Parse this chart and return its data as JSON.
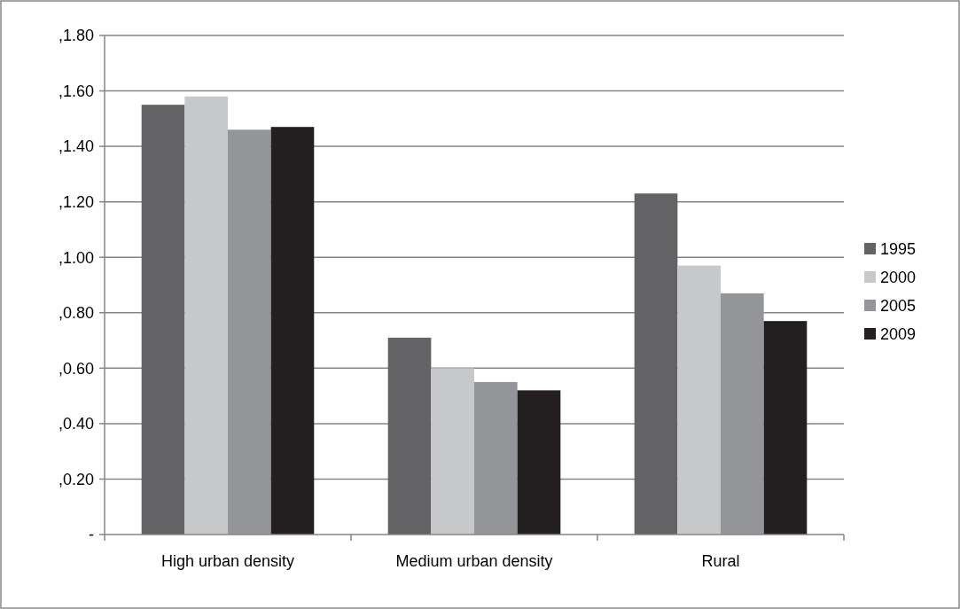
{
  "chart_data": {
    "type": "bar",
    "categories": [
      "High urban density",
      "Medium urban density",
      "Rural"
    ],
    "series": [
      {
        "name": "1995",
        "color": "#636365",
        "values": [
          1.55,
          0.71,
          1.23
        ]
      },
      {
        "name": "2000",
        "color": "#c7c8ca",
        "values": [
          1.58,
          0.6,
          0.97
        ]
      },
      {
        "name": "2005",
        "color": "#939598",
        "values": [
          1.46,
          0.55,
          0.87
        ]
      },
      {
        "name": "2009",
        "color": "#231f20",
        "values": [
          1.47,
          0.52,
          0.77
        ]
      }
    ],
    "ylim": [
      0,
      1.8
    ],
    "yticks": [
      {
        "value": 0,
        "label": "-"
      },
      {
        "value": 0.2,
        "label": ",0.20"
      },
      {
        "value": 0.4,
        "label": ",0.40"
      },
      {
        "value": 0.6,
        "label": ",0.60"
      },
      {
        "value": 0.8,
        "label": ",0.80"
      },
      {
        "value": 1,
        "label": ",1.00"
      },
      {
        "value": 1.2,
        "label": ",1.20"
      },
      {
        "value": 1.4,
        "label": ",1.40"
      },
      {
        "value": 1.6,
        "label": ",1.60"
      },
      {
        "value": 1.8,
        "label": ",1.80"
      }
    ],
    "grid": "y",
    "legend": "right"
  }
}
